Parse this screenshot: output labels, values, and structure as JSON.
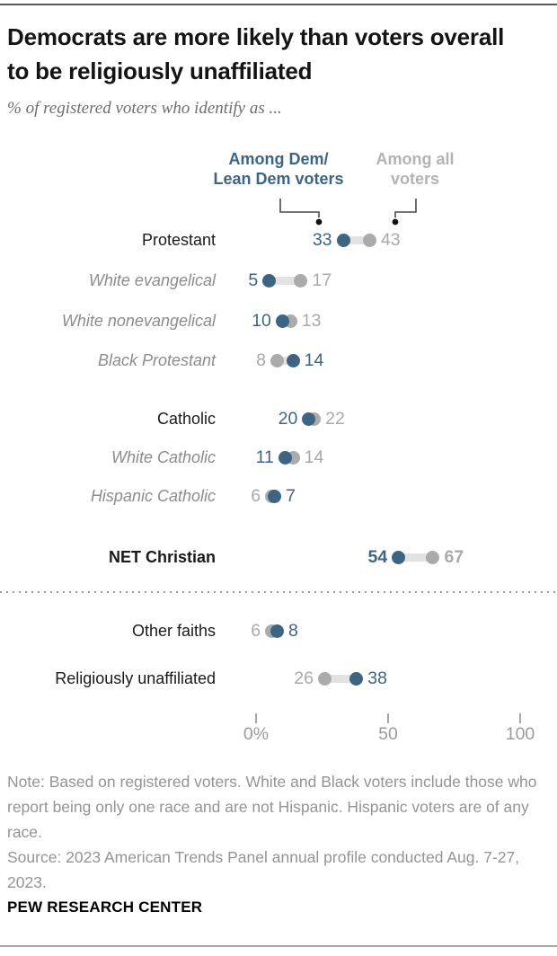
{
  "header": {
    "title": "Democrats are more likely than voters overall to be religiously unaffiliated",
    "subtitle": "% of registered voters who identify as ..."
  },
  "legend": {
    "dem": {
      "line1": "Among Dem/",
      "line2": "Lean Dem voters"
    },
    "all": {
      "line1": "Among all",
      "line2": "voters"
    }
  },
  "chart_data": {
    "type": "scatter",
    "variant": "paired-dot-plot",
    "categories": [
      "Protestant",
      "White evangelical",
      "White nonevangelical",
      "Black Protestant",
      "Catholic",
      "White Catholic",
      "Hispanic Catholic",
      "NET Christian",
      "Other faiths",
      "Religiously unaffiliated"
    ],
    "series": [
      {
        "name": "Among Dem/Lean Dem voters",
        "color": "#3d6583",
        "values": [
          33,
          5,
          10,
          14,
          20,
          11,
          7,
          54,
          8,
          38
        ]
      },
      {
        "name": "Among all voters",
        "color": "#ababab",
        "values": [
          43,
          17,
          13,
          8,
          22,
          14,
          6,
          67,
          6,
          26
        ]
      }
    ],
    "row_styles": [
      "group",
      "sub",
      "sub",
      "sub",
      "group",
      "sub",
      "sub",
      "net",
      "group",
      "group"
    ],
    "row_y": [
      267,
      312,
      357,
      401,
      466,
      509,
      552,
      620,
      702,
      755
    ],
    "xlim": [
      0,
      100
    ],
    "x_ticks": [
      {
        "value": 0,
        "label": "0%"
      },
      {
        "value": 50,
        "label": "50"
      },
      {
        "value": 100,
        "label": "100"
      }
    ],
    "grid": false,
    "legend_position": "top",
    "band_color": "#e2e2e2"
  },
  "notes": {
    "note": "Note: Based on registered voters. White and Black voters include those who report being only one race and are not Hispanic. Hispanic voters are of any race.",
    "source": "Source: 2023 American Trends Panel annual profile conducted Aug. 7-27, 2023.",
    "footer": "PEW RESEARCH CENTER"
  }
}
